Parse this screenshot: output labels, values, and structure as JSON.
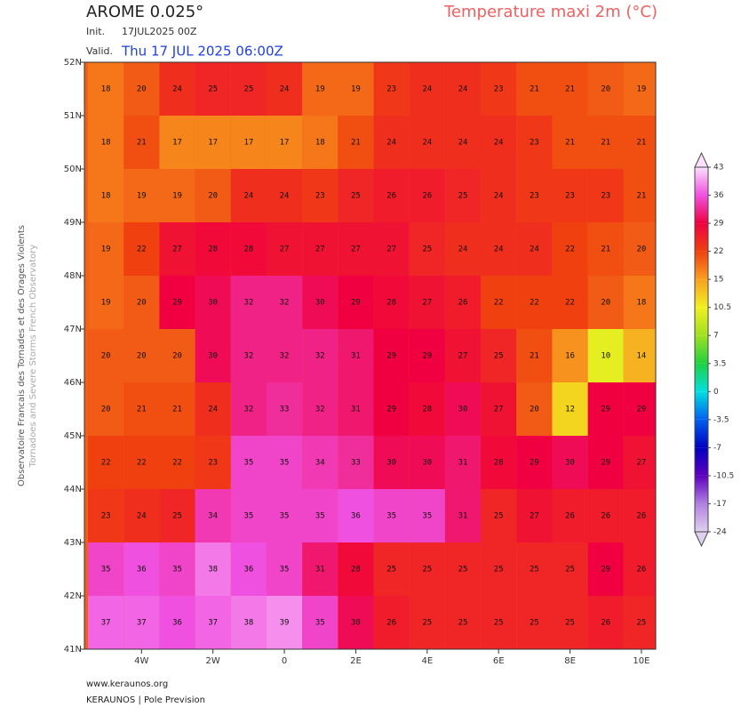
{
  "header": {
    "model": "AROME 0.025°",
    "field": "Temperature maxi 2m (°C)",
    "init_label": "Init.",
    "init": "17JUL2025 00Z",
    "valid_label": "Valid.",
    "valid": "Thu 17 JUL 2025 06:00Z"
  },
  "side": {
    "line1": "Observatoire Francais des Tornades et des Orages Violents",
    "line2": "Tornadoes and Severe Storms French Observatory"
  },
  "footer": {
    "site": "www.keraunos.org",
    "org": "KERAUNOS | Pole Prevision"
  },
  "map": {
    "xlim": [
      -5.6,
      10.4
    ],
    "ylim": [
      41,
      52
    ],
    "xticks": [
      {
        "value": -4,
        "label": "4W"
      },
      {
        "value": -2,
        "label": "2W"
      },
      0,
      {
        "value": 2,
        "label": "2E"
      },
      {
        "value": 4,
        "label": "4E"
      },
      {
        "value": 6,
        "label": "6E"
      },
      {
        "value": 8,
        "label": "8E"
      },
      {
        "value": 10,
        "label": "10E"
      }
    ],
    "yticks": [
      {
        "value": 52,
        "label": "52N"
      },
      {
        "value": 51,
        "label": "51N"
      },
      {
        "value": 50,
        "label": "50N"
      },
      {
        "value": 49,
        "label": "49N"
      },
      {
        "value": 48,
        "label": "48N"
      },
      {
        "value": 47,
        "label": "47N"
      },
      {
        "value": 46,
        "label": "46N"
      },
      {
        "value": 45,
        "label": "45N"
      },
      {
        "value": 44,
        "label": "44N"
      },
      {
        "value": 43,
        "label": "43N"
      },
      {
        "value": 42,
        "label": "42N"
      },
      {
        "value": 41,
        "label": "41N"
      }
    ],
    "lats": [
      51.5,
      50.5,
      49.5,
      48.5,
      47.5,
      46.5,
      45.5,
      44.5,
      43.5,
      42.5,
      41.5
    ],
    "lons": [
      -5,
      -4,
      -3,
      -2,
      -1,
      0,
      1,
      2,
      3,
      4,
      5,
      6,
      7,
      8,
      9,
      10
    ],
    "values": [
      [
        18,
        20,
        24,
        25,
        25,
        24,
        19,
        19,
        23,
        24,
        24,
        23,
        21,
        21,
        20,
        19
      ],
      [
        18,
        21,
        17,
        17,
        17,
        17,
        18,
        21,
        24,
        24,
        24,
        24,
        23,
        21,
        21,
        21
      ],
      [
        18,
        19,
        19,
        20,
        24,
        24,
        23,
        25,
        26,
        26,
        25,
        24,
        23,
        23,
        23,
        21
      ],
      [
        19,
        22,
        27,
        28,
        28,
        27,
        27,
        27,
        27,
        25,
        24,
        24,
        24,
        22,
        21,
        20
      ],
      [
        19,
        20,
        29,
        30,
        32,
        32,
        30,
        29,
        28,
        27,
        26,
        22,
        22,
        22,
        20,
        18
      ],
      [
        20,
        20,
        20,
        30,
        32,
        32,
        32,
        31,
        29,
        29,
        27,
        25,
        21,
        16,
        10,
        14
      ],
      [
        20,
        21,
        21,
        24,
        32,
        33,
        32,
        31,
        29,
        28,
        30,
        27,
        20,
        12,
        29,
        29
      ],
      [
        22,
        22,
        22,
        23,
        35,
        35,
        34,
        33,
        30,
        30,
        31,
        28,
        29,
        30,
        29,
        27
      ],
      [
        23,
        24,
        25,
        34,
        35,
        35,
        35,
        36,
        35,
        35,
        31,
        25,
        27,
        26,
        26,
        26
      ],
      [
        35,
        36,
        35,
        38,
        36,
        35,
        31,
        28,
        25,
        25,
        25,
        25,
        25,
        25,
        29,
        26
      ],
      [
        37,
        37,
        36,
        37,
        38,
        39,
        35,
        30,
        26,
        25,
        25,
        25,
        25,
        25,
        26,
        25
      ]
    ]
  },
  "colorbar": {
    "levels": [
      43,
      36,
      29,
      22,
      15,
      10.5,
      7,
      3.5,
      0,
      -3.5,
      -7,
      -10.5,
      -17,
      -24
    ],
    "colors": [
      "#fce0fc",
      "#f050e0",
      "#f00040",
      "#f04010",
      "#f8a020",
      "#f0f020",
      "#a0e020",
      "#20d040",
      "#00e0e0",
      "#0060f0",
      "#0000c0",
      "#6000c0",
      "#b080e0",
      "#e0d0f0"
    ]
  }
}
